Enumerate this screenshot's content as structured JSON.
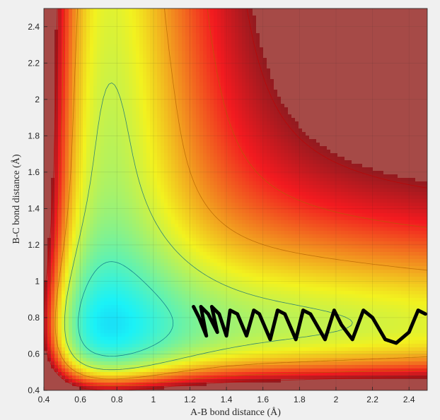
{
  "chart_data": {
    "type": "contour",
    "title": "",
    "xlabel": "A-B bond distance (Å)",
    "ylabel": "B-C bond distance (Å)",
    "xlim": [
      0.4,
      2.5
    ],
    "ylim": [
      0.4,
      2.5
    ],
    "xticks": [
      "0.4",
      "0.6",
      "0.8",
      "1",
      "1.2",
      "1.4",
      "1.6",
      "1.8",
      "2",
      "2.2",
      "2.4"
    ],
    "yticks": [
      "0.4",
      "0.6",
      "0.8",
      "1",
      "1.2",
      "1.4",
      "1.6",
      "1.8",
      "2",
      "2.2",
      "2.4"
    ],
    "colormap": "jet",
    "grid": true,
    "saturated_color": "#a64a47",
    "trajectory_color": "#000000",
    "trajectory": [
      [
        1.22,
        0.86
      ],
      [
        1.25,
        0.8
      ],
      [
        1.29,
        0.7
      ],
      [
        1.26,
        0.86
      ],
      [
        1.3,
        0.82
      ],
      [
        1.35,
        0.72
      ],
      [
        1.32,
        0.86
      ],
      [
        1.36,
        0.82
      ],
      [
        1.4,
        0.7
      ],
      [
        1.42,
        0.84
      ],
      [
        1.46,
        0.82
      ],
      [
        1.51,
        0.7
      ],
      [
        1.55,
        0.84
      ],
      [
        1.58,
        0.82
      ],
      [
        1.64,
        0.68
      ],
      [
        1.68,
        0.84
      ],
      [
        1.72,
        0.82
      ],
      [
        1.78,
        0.68
      ],
      [
        1.82,
        0.84
      ],
      [
        1.86,
        0.82
      ],
      [
        1.94,
        0.68
      ],
      [
        1.99,
        0.84
      ],
      [
        2.03,
        0.76
      ],
      [
        2.09,
        0.68
      ],
      [
        2.15,
        0.84
      ],
      [
        2.2,
        0.8
      ],
      [
        2.27,
        0.68
      ],
      [
        2.33,
        0.66
      ],
      [
        2.4,
        0.72
      ],
      [
        2.45,
        0.84
      ],
      [
        2.49,
        0.82
      ]
    ]
  }
}
